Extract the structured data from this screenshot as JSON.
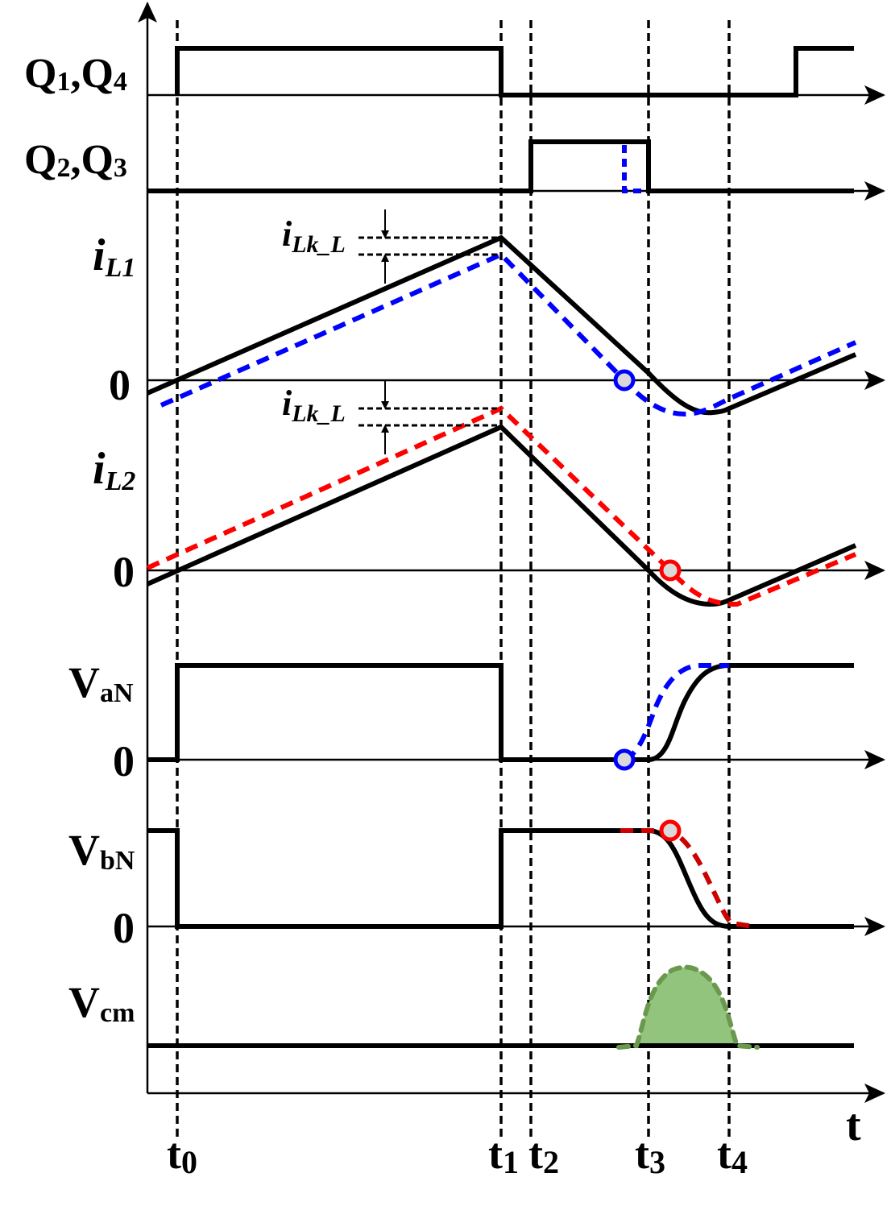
{
  "signals": {
    "q14": {
      "a": "Q",
      "b": "1",
      "c": ",Q",
      "d": "4"
    },
    "q23": {
      "a": "Q",
      "b": "2",
      "c": ",Q",
      "d": "3"
    },
    "il1": {
      "a": "i",
      "b": "L1"
    },
    "il2": {
      "a": "i",
      "b": "L2"
    },
    "van": {
      "a": "V",
      "b": "aN"
    },
    "vbn": {
      "a": "V",
      "b": "bN"
    },
    "vcm": {
      "a": "V",
      "b": "cm"
    }
  },
  "zero_label": "0",
  "annotation": {
    "a": "i",
    "b": "Lk_L"
  },
  "time_axis_label": "t",
  "time_marks": [
    {
      "a": "t",
      "b": "0"
    },
    {
      "a": "t",
      "b": "1"
    },
    {
      "a": "t",
      "b": "2"
    },
    {
      "a": "t",
      "b": "3"
    },
    {
      "a": "t",
      "b": "4"
    }
  ],
  "colors": {
    "blue": "#0000ff",
    "red": "#ff0000",
    "green_fill": "#93c47d",
    "green_stroke": "#6a994e"
  }
}
